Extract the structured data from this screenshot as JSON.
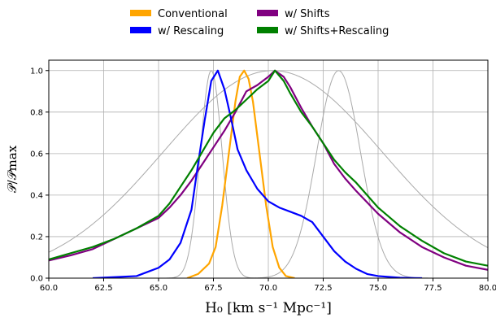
{
  "chart_data": {
    "type": "line",
    "xlabel": "H₀  [km s⁻¹ Mpc⁻¹]",
    "ylabel": "𝒫/𝒫max",
    "xlim": [
      60,
      80
    ],
    "ylim": [
      0,
      1.05
    ],
    "grid": true,
    "legend_placement": "top, outside plot, 2 columns",
    "x_ticks": [
      "60.0",
      "62.5",
      "65.0",
      "67.5",
      "70.0",
      "72.5",
      "75.0",
      "77.5",
      "80.0"
    ],
    "y_ticks": [
      "0.0",
      "0.2",
      "0.4",
      "0.6",
      "0.8",
      "1.0"
    ],
    "legend": [
      {
        "label": "Conventional",
        "color": "#FFA500"
      },
      {
        "label": "w/ Shifts",
        "color": "#800080"
      },
      {
        "label": "w/ Rescaling",
        "color": "#0000FF"
      },
      {
        "label": "w/ Shifts+Rescaling",
        "color": "#008000"
      }
    ],
    "series": [
      {
        "name": "Conventional",
        "color": "#FFA500",
        "x": [
          66.3,
          66.8,
          67.3,
          67.6,
          67.9,
          68.2,
          68.5,
          68.7,
          68.9,
          69.1,
          69.3,
          69.6,
          69.9,
          70.2,
          70.5,
          70.8,
          71.2
        ],
        "y": [
          0.0,
          0.02,
          0.07,
          0.15,
          0.35,
          0.6,
          0.85,
          0.97,
          1.0,
          0.96,
          0.85,
          0.6,
          0.35,
          0.15,
          0.05,
          0.01,
          0.0
        ]
      },
      {
        "name": "w/ Shifts",
        "color": "#800080",
        "x": [
          60.0,
          61.0,
          62.0,
          63.0,
          64.0,
          65.0,
          65.5,
          66.0,
          66.5,
          67.0,
          67.5,
          68.0,
          68.5,
          69.0,
          69.5,
          70.0,
          70.3,
          70.7,
          71.0,
          71.5,
          72.0,
          72.5,
          73.0,
          73.5,
          74.0,
          75.0,
          76.0,
          77.0,
          78.0,
          79.0,
          80.0
        ],
        "y": [
          0.085,
          0.11,
          0.14,
          0.19,
          0.24,
          0.29,
          0.34,
          0.4,
          0.47,
          0.55,
          0.63,
          0.71,
          0.8,
          0.9,
          0.93,
          0.97,
          1.0,
          0.97,
          0.92,
          0.82,
          0.73,
          0.65,
          0.55,
          0.48,
          0.42,
          0.31,
          0.22,
          0.15,
          0.1,
          0.06,
          0.04
        ]
      },
      {
        "name": "w/ Rescaling",
        "color": "#0000FF",
        "x": [
          62.0,
          63.0,
          64.0,
          64.5,
          65.0,
          65.5,
          66.0,
          66.5,
          66.8,
          67.1,
          67.4,
          67.7,
          68.0,
          68.3,
          68.6,
          69.0,
          69.5,
          70.0,
          70.5,
          71.0,
          71.5,
          72.0,
          72.5,
          73.0,
          73.5,
          74.0,
          74.5,
          75.0,
          76.0,
          77.0
        ],
        "y": [
          0.0,
          0.005,
          0.01,
          0.03,
          0.05,
          0.09,
          0.17,
          0.33,
          0.55,
          0.76,
          0.95,
          1.0,
          0.91,
          0.77,
          0.62,
          0.52,
          0.43,
          0.37,
          0.34,
          0.32,
          0.3,
          0.27,
          0.2,
          0.13,
          0.08,
          0.045,
          0.02,
          0.01,
          0.002,
          0.0
        ]
      },
      {
        "name": "w/ Shifts+Rescaling",
        "color": "#008000",
        "x": [
          60.0,
          61.0,
          62.0,
          63.0,
          64.0,
          65.0,
          65.5,
          66.0,
          66.5,
          67.0,
          67.5,
          68.0,
          68.5,
          69.0,
          69.5,
          70.0,
          70.3,
          70.7,
          71.0,
          71.5,
          72.0,
          72.5,
          73.0,
          73.5,
          74.0,
          75.0,
          76.0,
          77.0,
          78.0,
          79.0,
          80.0
        ],
        "y": [
          0.09,
          0.12,
          0.15,
          0.19,
          0.24,
          0.3,
          0.36,
          0.44,
          0.52,
          0.61,
          0.7,
          0.77,
          0.81,
          0.86,
          0.91,
          0.95,
          1.0,
          0.95,
          0.89,
          0.8,
          0.73,
          0.65,
          0.57,
          0.51,
          0.46,
          0.34,
          0.25,
          0.18,
          0.12,
          0.08,
          0.06
        ]
      }
    ],
    "reference_curves": [
      {
        "color": "#AAAAAA",
        "shape": "gaussian",
        "mean": 67.4,
        "sigma": 0.5,
        "peak": 1.0
      },
      {
        "color": "#AAAAAA",
        "shape": "gaussian",
        "mean": 73.2,
        "sigma": 1.0,
        "peak": 1.0
      },
      {
        "color": "#AAAAAA",
        "shape": "gaussian",
        "mean": 70.2,
        "sigma": 5.0,
        "peak": 1.0
      }
    ]
  }
}
